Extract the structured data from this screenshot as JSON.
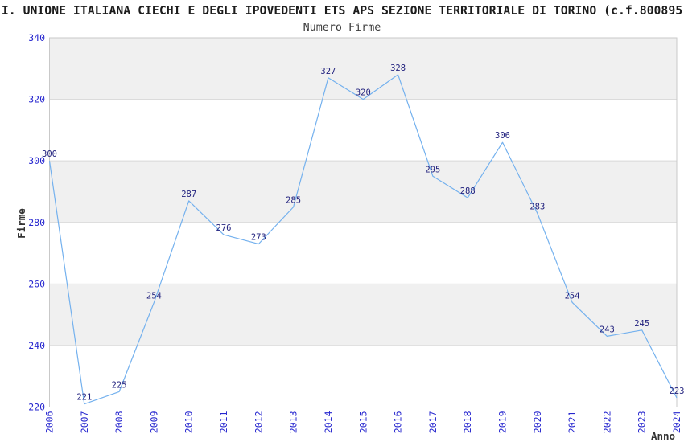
{
  "header": {
    "title": "I. UNIONE ITALIANA CIECHI E DEGLI IPOVEDENTI ETS APS SEZIONE TERRITORIALE DI TORINO (c.f.800895",
    "subtitle": "Numero Firme"
  },
  "chart_data": {
    "type": "line",
    "title": "I. UNIONE ITALIANA CIECHI E DEGLI IPOVEDENTI ETS APS SEZIONE TERRITORIALE DI TORINO (c.f.800895",
    "subtitle": "Numero Firme",
    "xlabel": "Anno",
    "ylabel": "Firme",
    "x": [
      2006,
      2007,
      2008,
      2009,
      2010,
      2011,
      2012,
      2013,
      2014,
      2015,
      2016,
      2017,
      2018,
      2019,
      2020,
      2021,
      2022,
      2023,
      2024
    ],
    "series": [
      {
        "name": "Numero Firme",
        "values": [
          300,
          221,
          225,
          254,
          287,
          276,
          273,
          285,
          327,
          320,
          328,
          295,
          288,
          306,
          283,
          254,
          243,
          245,
          223
        ]
      }
    ],
    "ylim": [
      220,
      340
    ],
    "yticks": [
      220,
      240,
      260,
      280,
      300,
      320,
      340
    ],
    "grid": true,
    "alternating_bands": true,
    "legend_position": "none",
    "data_labels": true
  },
  "colors": {
    "line": "#74b1ee",
    "tick_label": "#2727cf",
    "data_label": "#23237f",
    "band": "#f0f0f0",
    "gridline": "#d8d8d8",
    "plot_border": "#c9c9c9",
    "axis_title": "#333333",
    "background": "#ffffff"
  }
}
